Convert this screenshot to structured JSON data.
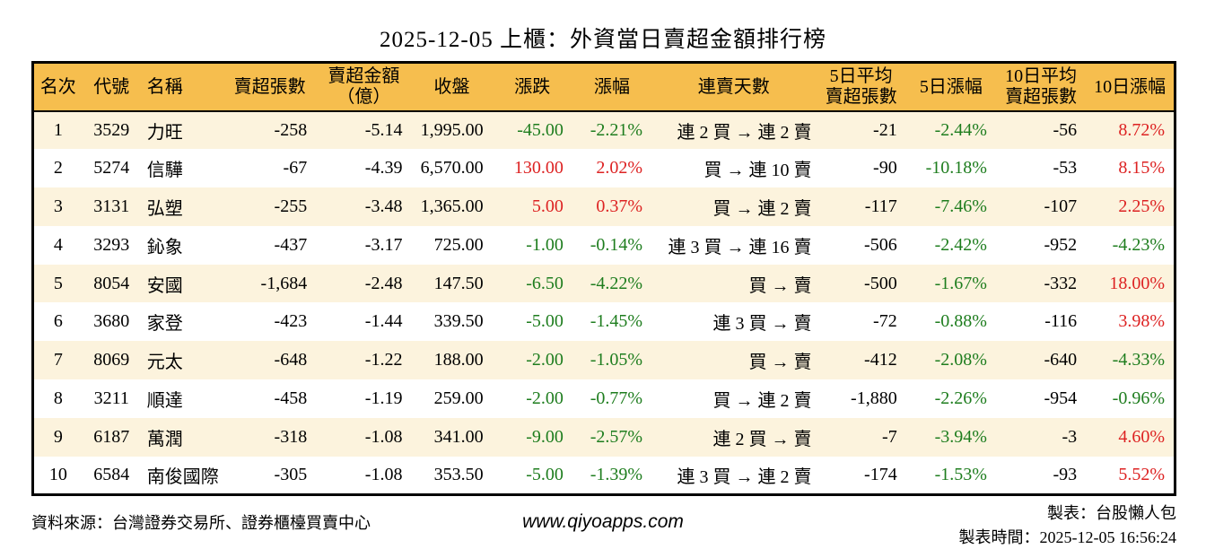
{
  "title": "2025-12-05 上櫃：外資當日賣超金額排行榜",
  "colors": {
    "up": "#dd2222",
    "down": "#1e7d1e",
    "header_bg": "#f6be4e",
    "stripe_bg": "#fcf3dd",
    "border": "#000000"
  },
  "table": {
    "columns": [
      {
        "label": "名次"
      },
      {
        "label": "代號"
      },
      {
        "label": "名稱"
      },
      {
        "label": "賣超張數"
      },
      {
        "label": "賣超金額\n（億）"
      },
      {
        "label": "收盤"
      },
      {
        "label": "漲跌"
      },
      {
        "label": "漲幅"
      },
      {
        "label": "連賣天數"
      },
      {
        "label": "5日平均\n賣超張數"
      },
      {
        "label": "5日漲幅"
      },
      {
        "label": "10日平均\n賣超張數"
      },
      {
        "label": "10日漲幅"
      }
    ],
    "rows": [
      {
        "rank": "1",
        "code": "3529",
        "name": "力旺",
        "sell_volume": "-258",
        "sell_amount": "-5.14",
        "close": "1,995.00",
        "change": "-45.00",
        "change_pct": "-2.21%",
        "day_dir": "down",
        "streak": "連 2 買 → 連 2 賣",
        "avg5_volume": "-21",
        "pct5": "-2.44%",
        "dir5": "down",
        "avg10_volume": "-56",
        "pct10": "8.72%",
        "dir10": "up"
      },
      {
        "rank": "2",
        "code": "5274",
        "name": "信驊",
        "sell_volume": "-67",
        "sell_amount": "-4.39",
        "close": "6,570.00",
        "change": "130.00",
        "change_pct": "2.02%",
        "day_dir": "up",
        "streak": "買 → 連 10 賣",
        "avg5_volume": "-90",
        "pct5": "-10.18%",
        "dir5": "down",
        "avg10_volume": "-53",
        "pct10": "8.15%",
        "dir10": "up"
      },
      {
        "rank": "3",
        "code": "3131",
        "name": "弘塑",
        "sell_volume": "-255",
        "sell_amount": "-3.48",
        "close": "1,365.00",
        "change": "5.00",
        "change_pct": "0.37%",
        "day_dir": "up",
        "streak": "買 → 連 2 賣",
        "avg5_volume": "-117",
        "pct5": "-7.46%",
        "dir5": "down",
        "avg10_volume": "-107",
        "pct10": "2.25%",
        "dir10": "up"
      },
      {
        "rank": "4",
        "code": "3293",
        "name": "鈊象",
        "sell_volume": "-437",
        "sell_amount": "-3.17",
        "close": "725.00",
        "change": "-1.00",
        "change_pct": "-0.14%",
        "day_dir": "down",
        "streak": "連 3 買 → 連 16 賣",
        "avg5_volume": "-506",
        "pct5": "-2.42%",
        "dir5": "down",
        "avg10_volume": "-952",
        "pct10": "-4.23%",
        "dir10": "down"
      },
      {
        "rank": "5",
        "code": "8054",
        "name": "安國",
        "sell_volume": "-1,684",
        "sell_amount": "-2.48",
        "close": "147.50",
        "change": "-6.50",
        "change_pct": "-4.22%",
        "day_dir": "down",
        "streak": "買 → 賣",
        "avg5_volume": "-500",
        "pct5": "-1.67%",
        "dir5": "down",
        "avg10_volume": "-332",
        "pct10": "18.00%",
        "dir10": "up"
      },
      {
        "rank": "6",
        "code": "3680",
        "name": "家登",
        "sell_volume": "-423",
        "sell_amount": "-1.44",
        "close": "339.50",
        "change": "-5.00",
        "change_pct": "-1.45%",
        "day_dir": "down",
        "streak": "連 3 買 → 賣",
        "avg5_volume": "-72",
        "pct5": "-0.88%",
        "dir5": "down",
        "avg10_volume": "-116",
        "pct10": "3.98%",
        "dir10": "up"
      },
      {
        "rank": "7",
        "code": "8069",
        "name": "元太",
        "sell_volume": "-648",
        "sell_amount": "-1.22",
        "close": "188.00",
        "change": "-2.00",
        "change_pct": "-1.05%",
        "day_dir": "down",
        "streak": "買 → 賣",
        "avg5_volume": "-412",
        "pct5": "-2.08%",
        "dir5": "down",
        "avg10_volume": "-640",
        "pct10": "-4.33%",
        "dir10": "down"
      },
      {
        "rank": "8",
        "code": "3211",
        "name": "順達",
        "sell_volume": "-458",
        "sell_amount": "-1.19",
        "close": "259.00",
        "change": "-2.00",
        "change_pct": "-0.77%",
        "day_dir": "down",
        "streak": "買 → 連 2 賣",
        "avg5_volume": "-1,880",
        "pct5": "-2.26%",
        "dir5": "down",
        "avg10_volume": "-954",
        "pct10": "-0.96%",
        "dir10": "down"
      },
      {
        "rank": "9",
        "code": "6187",
        "name": "萬潤",
        "sell_volume": "-318",
        "sell_amount": "-1.08",
        "close": "341.00",
        "change": "-9.00",
        "change_pct": "-2.57%",
        "day_dir": "down",
        "streak": "連 2 買 → 賣",
        "avg5_volume": "-7",
        "pct5": "-3.94%",
        "dir5": "down",
        "avg10_volume": "-3",
        "pct10": "4.60%",
        "dir10": "up"
      },
      {
        "rank": "10",
        "code": "6584",
        "name": "南俊國際",
        "sell_volume": "-305",
        "sell_amount": "-1.08",
        "close": "353.50",
        "change": "-5.00",
        "change_pct": "-1.39%",
        "day_dir": "down",
        "streak": "連 3 買 → 連 2 賣",
        "avg5_volume": "-174",
        "pct5": "-1.53%",
        "dir5": "down",
        "avg10_volume": "-93",
        "pct10": "5.52%",
        "dir10": "up"
      }
    ]
  },
  "footer": {
    "source": "資料來源：台灣證券交易所、證券櫃檯買賣中心",
    "website": "www.qiyoapps.com",
    "author": "製表：台股懶人包",
    "generated": "製表時間：2025-12-05 16:56:24"
  }
}
